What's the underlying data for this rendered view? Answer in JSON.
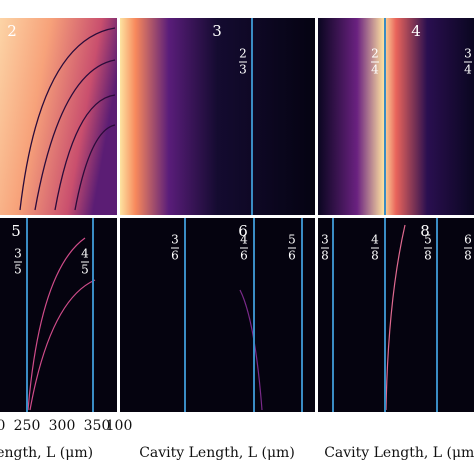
{
  "panels": [
    {
      "label": "2",
      "fractions": []
    },
    {
      "label": "3",
      "fractions": [
        {
          "num": "2",
          "den": "3"
        }
      ]
    },
    {
      "label": "4",
      "fractions": [
        {
          "num": "2",
          "den": "4"
        },
        {
          "num": "3",
          "den": "4"
        }
      ]
    },
    {
      "label": "5",
      "fractions": [
        {
          "num": "3",
          "den": "5"
        },
        {
          "num": "4",
          "den": "5"
        }
      ]
    },
    {
      "label": "6",
      "fractions": [
        {
          "num": "3",
          "den": "6"
        },
        {
          "num": "4",
          "den": "6"
        },
        {
          "num": "5",
          "den": "6"
        }
      ]
    },
    {
      "label": "8",
      "fractions": [
        {
          "num": "3",
          "den": "8"
        },
        {
          "num": "4",
          "den": "8"
        },
        {
          "num": "5",
          "den": "8"
        },
        {
          "num": "6",
          "den": "8"
        }
      ]
    }
  ],
  "ticks": {
    "left": [
      "0",
      "250",
      "300",
      "350"
    ],
    "middle": [
      "100"
    ]
  },
  "axis_labels": [
    "Length, L (μm)",
    "Cavity Length, L (μm)",
    "Cavity Length, L (μm)"
  ]
}
